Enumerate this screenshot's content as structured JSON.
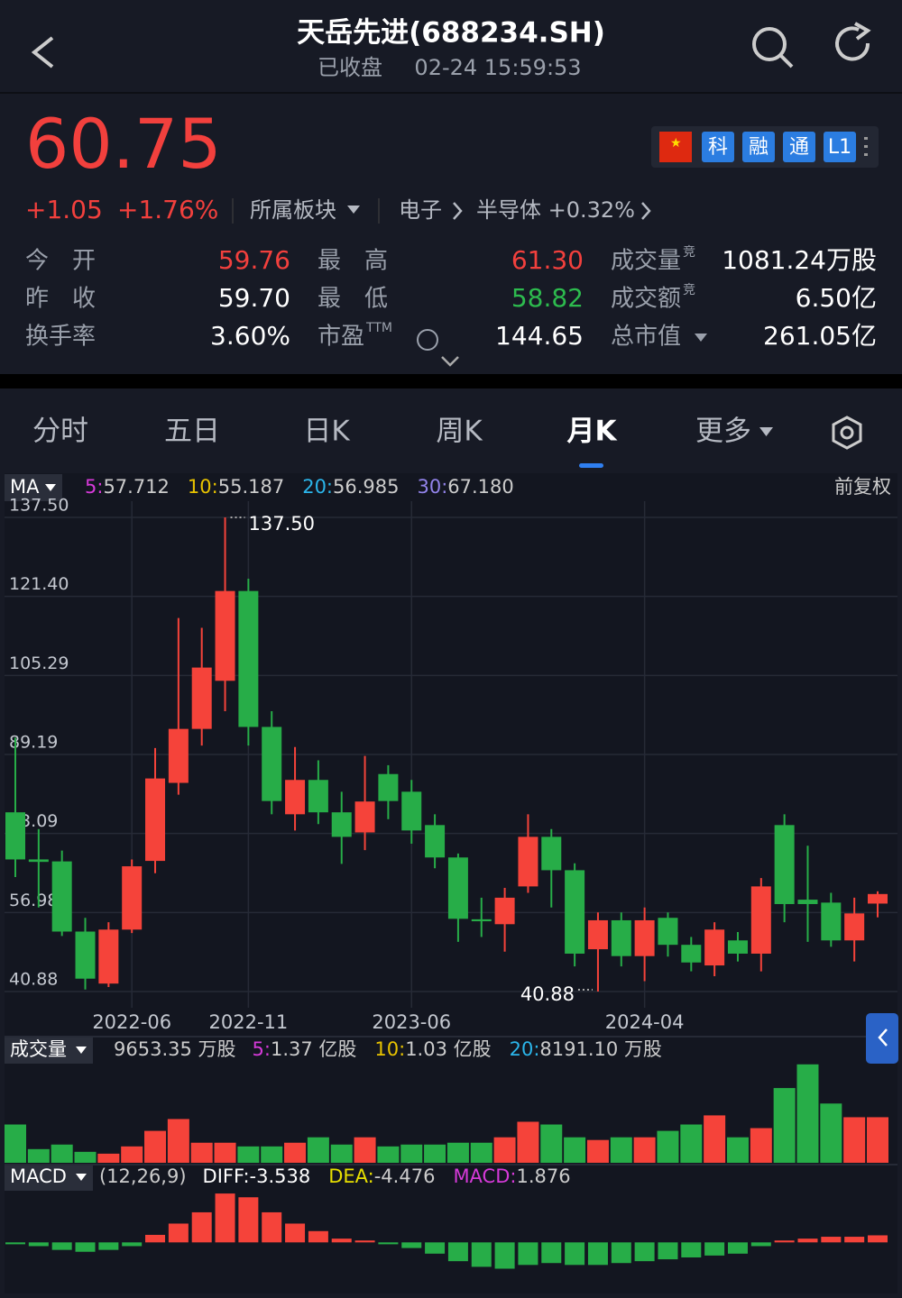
{
  "header": {
    "title": "天岳先进(688234.SH)",
    "status": "已收盘",
    "time": "02-24 15:59:53"
  },
  "quote": {
    "price": "60.75",
    "change": "+1.05",
    "change_pct": "+1.76%",
    "sector_menu": "所属板块",
    "sector": "电子",
    "sub_sector": "半导体 +0.32%",
    "badges": [
      "科",
      "融",
      "通",
      "L1"
    ]
  },
  "stats": [
    {
      "label": "今　开",
      "value": "59.76",
      "color": "#f2403d"
    },
    {
      "label": "最　高",
      "value": "61.30",
      "color": "#f2403d"
    },
    {
      "label": "成交量",
      "sup": "竞",
      "value": "1081.24万股",
      "color": "#ffffff"
    },
    {
      "label": "昨　收",
      "value": "59.70",
      "color": "#ffffff"
    },
    {
      "label": "最　低",
      "value": "58.82",
      "color": "#2dbb4e"
    },
    {
      "label": "成交额",
      "sup": "竞",
      "value": "6.50亿",
      "color": "#ffffff"
    },
    {
      "label": "换手率",
      "value": "3.60%",
      "color": "#ffffff"
    },
    {
      "label": "市盈",
      "sup": "TTM",
      "value": "144.65",
      "color": "#ffffff"
    },
    {
      "label": "总市值",
      "value": "261.05亿",
      "color": "#ffffff"
    }
  ],
  "tabs": [
    "分时",
    "五日",
    "日K",
    "周K",
    "月K",
    "更多"
  ],
  "active_tab": 4,
  "ma_legend": {
    "menu": "MA",
    "adjust": "前复权",
    "items": [
      {
        "key": "5:",
        "value": "57.712",
        "color": "#d63ad9"
      },
      {
        "key": "10:",
        "value": "55.187",
        "color": "#e8c300"
      },
      {
        "key": "20:",
        "value": "56.985",
        "color": "#2bb5ea"
      },
      {
        "key": "30:",
        "value": "67.180",
        "color": "#9283ea"
      }
    ]
  },
  "volume_legend": {
    "menu": "成交量",
    "current": "9653.35 万股",
    "items": [
      {
        "key": "5:",
        "value": "1.37 亿股",
        "color": "#d63ad9"
      },
      {
        "key": "10:",
        "value": "1.03 亿股",
        "color": "#e8c300"
      },
      {
        "key": "20:",
        "value": "8191.10 万股",
        "color": "#2bb5ea"
      }
    ]
  },
  "macd_legend": {
    "menu": "MACD",
    "params": "(12,26,9)",
    "items": [
      {
        "key": "DIFF:",
        "value": "-3.538",
        "color": "#ffffff"
      },
      {
        "key": "DEA:",
        "value": "-4.476",
        "color": "#e8e000"
      },
      {
        "key": "MACD:",
        "value": "1.876",
        "color": "#d63ad9"
      }
    ]
  },
  "chart_data": [
    {
      "type": "candlestick",
      "categories": [
        null,
        null,
        null,
        null,
        null,
        "2022-06",
        null,
        null,
        null,
        null,
        "2022-11",
        null,
        null,
        null,
        null,
        null,
        null,
        "2023-06",
        null,
        null,
        null,
        null,
        null,
        null,
        null,
        null,
        null,
        "2024-04",
        null,
        null,
        null,
        null,
        null,
        null,
        null,
        null,
        null,
        null
      ],
      "open": [
        77.4,
        67.8,
        67.4,
        53.1,
        42.5,
        53.5,
        67.5,
        83.4,
        94.4,
        104.2,
        122.5,
        94.8,
        77.0,
        84.0,
        77.4,
        73.3,
        85.2,
        81.6,
        74.8,
        68.2,
        55.6,
        54.6,
        62.3,
        72.4,
        65.6,
        49.5,
        55.4,
        48.1,
        55.9,
        50.4,
        46.2,
        51.3,
        48.6,
        74.8,
        59.6,
        59.0,
        51.3,
        58.8
      ],
      "high": [
        92.6,
        74,
        69.6,
        55.9,
        55,
        67.8,
        90.5,
        117,
        115,
        137.5,
        125,
        98,
        90.7,
        88,
        81.6,
        88.9,
        87,
        84,
        77,
        69,
        60,
        62,
        77,
        74,
        67,
        57,
        57,
        58,
        57,
        52,
        55,
        53,
        64,
        77,
        70.6,
        61,
        60,
        61.3
      ],
      "low": [
        64.2,
        58,
        52.2,
        41.3,
        41.8,
        52.8,
        65,
        81,
        91,
        98,
        91,
        77,
        73.7,
        75,
        66.9,
        69.7,
        76,
        71,
        66,
        51,
        52,
        49,
        61,
        58,
        46,
        40.88,
        46,
        43,
        48,
        45,
        44,
        47,
        45,
        55,
        51,
        50,
        47,
        56
      ],
      "close": [
        67.8,
        67.3,
        53.1,
        43.5,
        53.5,
        66.4,
        84.3,
        94.4,
        106.9,
        122.5,
        94.8,
        79.7,
        84.0,
        77.4,
        72.4,
        79.6,
        79.7,
        73.7,
        68.2,
        55.7,
        55.2,
        60.0,
        72.4,
        65.6,
        48.6,
        55.4,
        48.1,
        55.4,
        50.4,
        46.8,
        53.5,
        48.6,
        62.3,
        58.7,
        58.7,
        51.3,
        56.8,
        60.75
      ],
      "ylim": [
        40.88,
        137.5
      ],
      "yticks": [
        {
          "value": 137.5,
          "label": "137.50"
        },
        {
          "value": 121.4,
          "label": "121.40"
        },
        105.29,
        89.19,
        73.09,
        56.98,
        40.88
      ],
      "grid": true,
      "up_color": "#f5433a",
      "down_color": "#27ad48",
      "annotations": [
        {
          "value": 137.5,
          "label": "137.50"
        },
        {
          "value": 40.88,
          "label": "40.88"
        }
      ]
    },
    {
      "type": "bar",
      "values": [
        8110,
        2900,
        3860,
        2320,
        1930,
        3470,
        6760,
        9270,
        4250,
        4250,
        3470,
        3470,
        4250,
        5400,
        3860,
        5400,
        3470,
        3860,
        3860,
        4250,
        4250,
        5400,
        8690,
        8110,
        5400,
        4830,
        5400,
        5400,
        6760,
        8110,
        10040,
        5400,
        7340,
        15830,
        20850,
        12550,
        9650,
        9653.35
      ],
      "ylim": [
        0,
        21000
      ]
    },
    {
      "type": "bar",
      "values": [
        -0.5,
        -1,
        -2,
        -2.5,
        -2,
        -1,
        2,
        5,
        8,
        13,
        12,
        8,
        5,
        3,
        1,
        0.5,
        -0.5,
        -1.5,
        -3,
        -5,
        -6.5,
        -7,
        -6,
        -5.5,
        -6,
        -6,
        -5.5,
        -5,
        -4.5,
        -4,
        -3.5,
        -3,
        -1,
        0.5,
        1,
        1.5,
        1.5,
        1.876
      ],
      "ylim": [
        -10,
        13.5
      ]
    }
  ]
}
